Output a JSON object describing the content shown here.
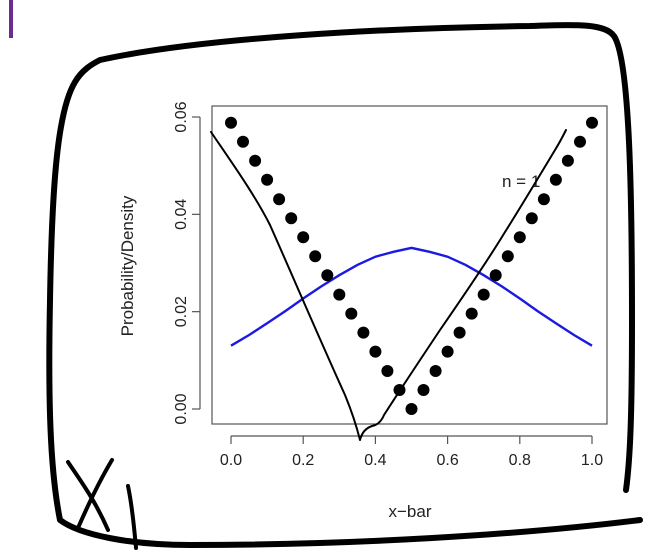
{
  "chart_data": {
    "type": "scatter",
    "xlabel": "x−bar",
    "ylabel": "Probability/Density",
    "xlim": [
      0,
      1
    ],
    "ylim": [
      0,
      0.06
    ],
    "xticks": [
      "0.0",
      "0.2",
      "0.4",
      "0.6",
      "0.8",
      "1.0"
    ],
    "yticks": [
      "0.00",
      "0.02",
      "0.04",
      "0.06"
    ],
    "annotation": "n = 1",
    "grid": false,
    "series": [
      {
        "kind": "points",
        "color": "#000000",
        "x": [
          0.0,
          0.0333,
          0.0667,
          0.1,
          0.1333,
          0.1667,
          0.2,
          0.2333,
          0.2667,
          0.3,
          0.3333,
          0.3667,
          0.4,
          0.4333,
          0.4667,
          0.5,
          0.5333,
          0.5667,
          0.6,
          0.6333,
          0.6667,
          0.7,
          0.7333,
          0.7667,
          0.8,
          0.8333,
          0.8667,
          0.9,
          0.9333,
          0.9667,
          1.0
        ],
        "y": [
          0.0588,
          0.0549,
          0.051,
          0.0471,
          0.0431,
          0.0392,
          0.0353,
          0.0314,
          0.0275,
          0.0235,
          0.0196,
          0.0157,
          0.0118,
          0.0078,
          0.0039,
          0.0,
          0.0039,
          0.0078,
          0.0118,
          0.0157,
          0.0196,
          0.0235,
          0.0275,
          0.0314,
          0.0353,
          0.0392,
          0.0431,
          0.0471,
          0.051,
          0.0549,
          0.0588
        ]
      },
      {
        "kind": "line",
        "color": "#1a1ae0",
        "x": [
          0.0,
          0.05,
          0.1,
          0.15,
          0.2,
          0.25,
          0.3,
          0.35,
          0.4,
          0.45,
          0.5,
          0.55,
          0.6,
          0.65,
          0.7,
          0.75,
          0.8,
          0.85,
          0.9,
          0.95,
          1.0
        ],
        "y": [
          0.013,
          0.0152,
          0.0176,
          0.0201,
          0.0227,
          0.0252,
          0.0275,
          0.0296,
          0.0313,
          0.0323,
          0.0331,
          0.0323,
          0.0313,
          0.0296,
          0.0275,
          0.0252,
          0.0227,
          0.0201,
          0.0176,
          0.0152,
          0.013
        ]
      }
    ]
  }
}
